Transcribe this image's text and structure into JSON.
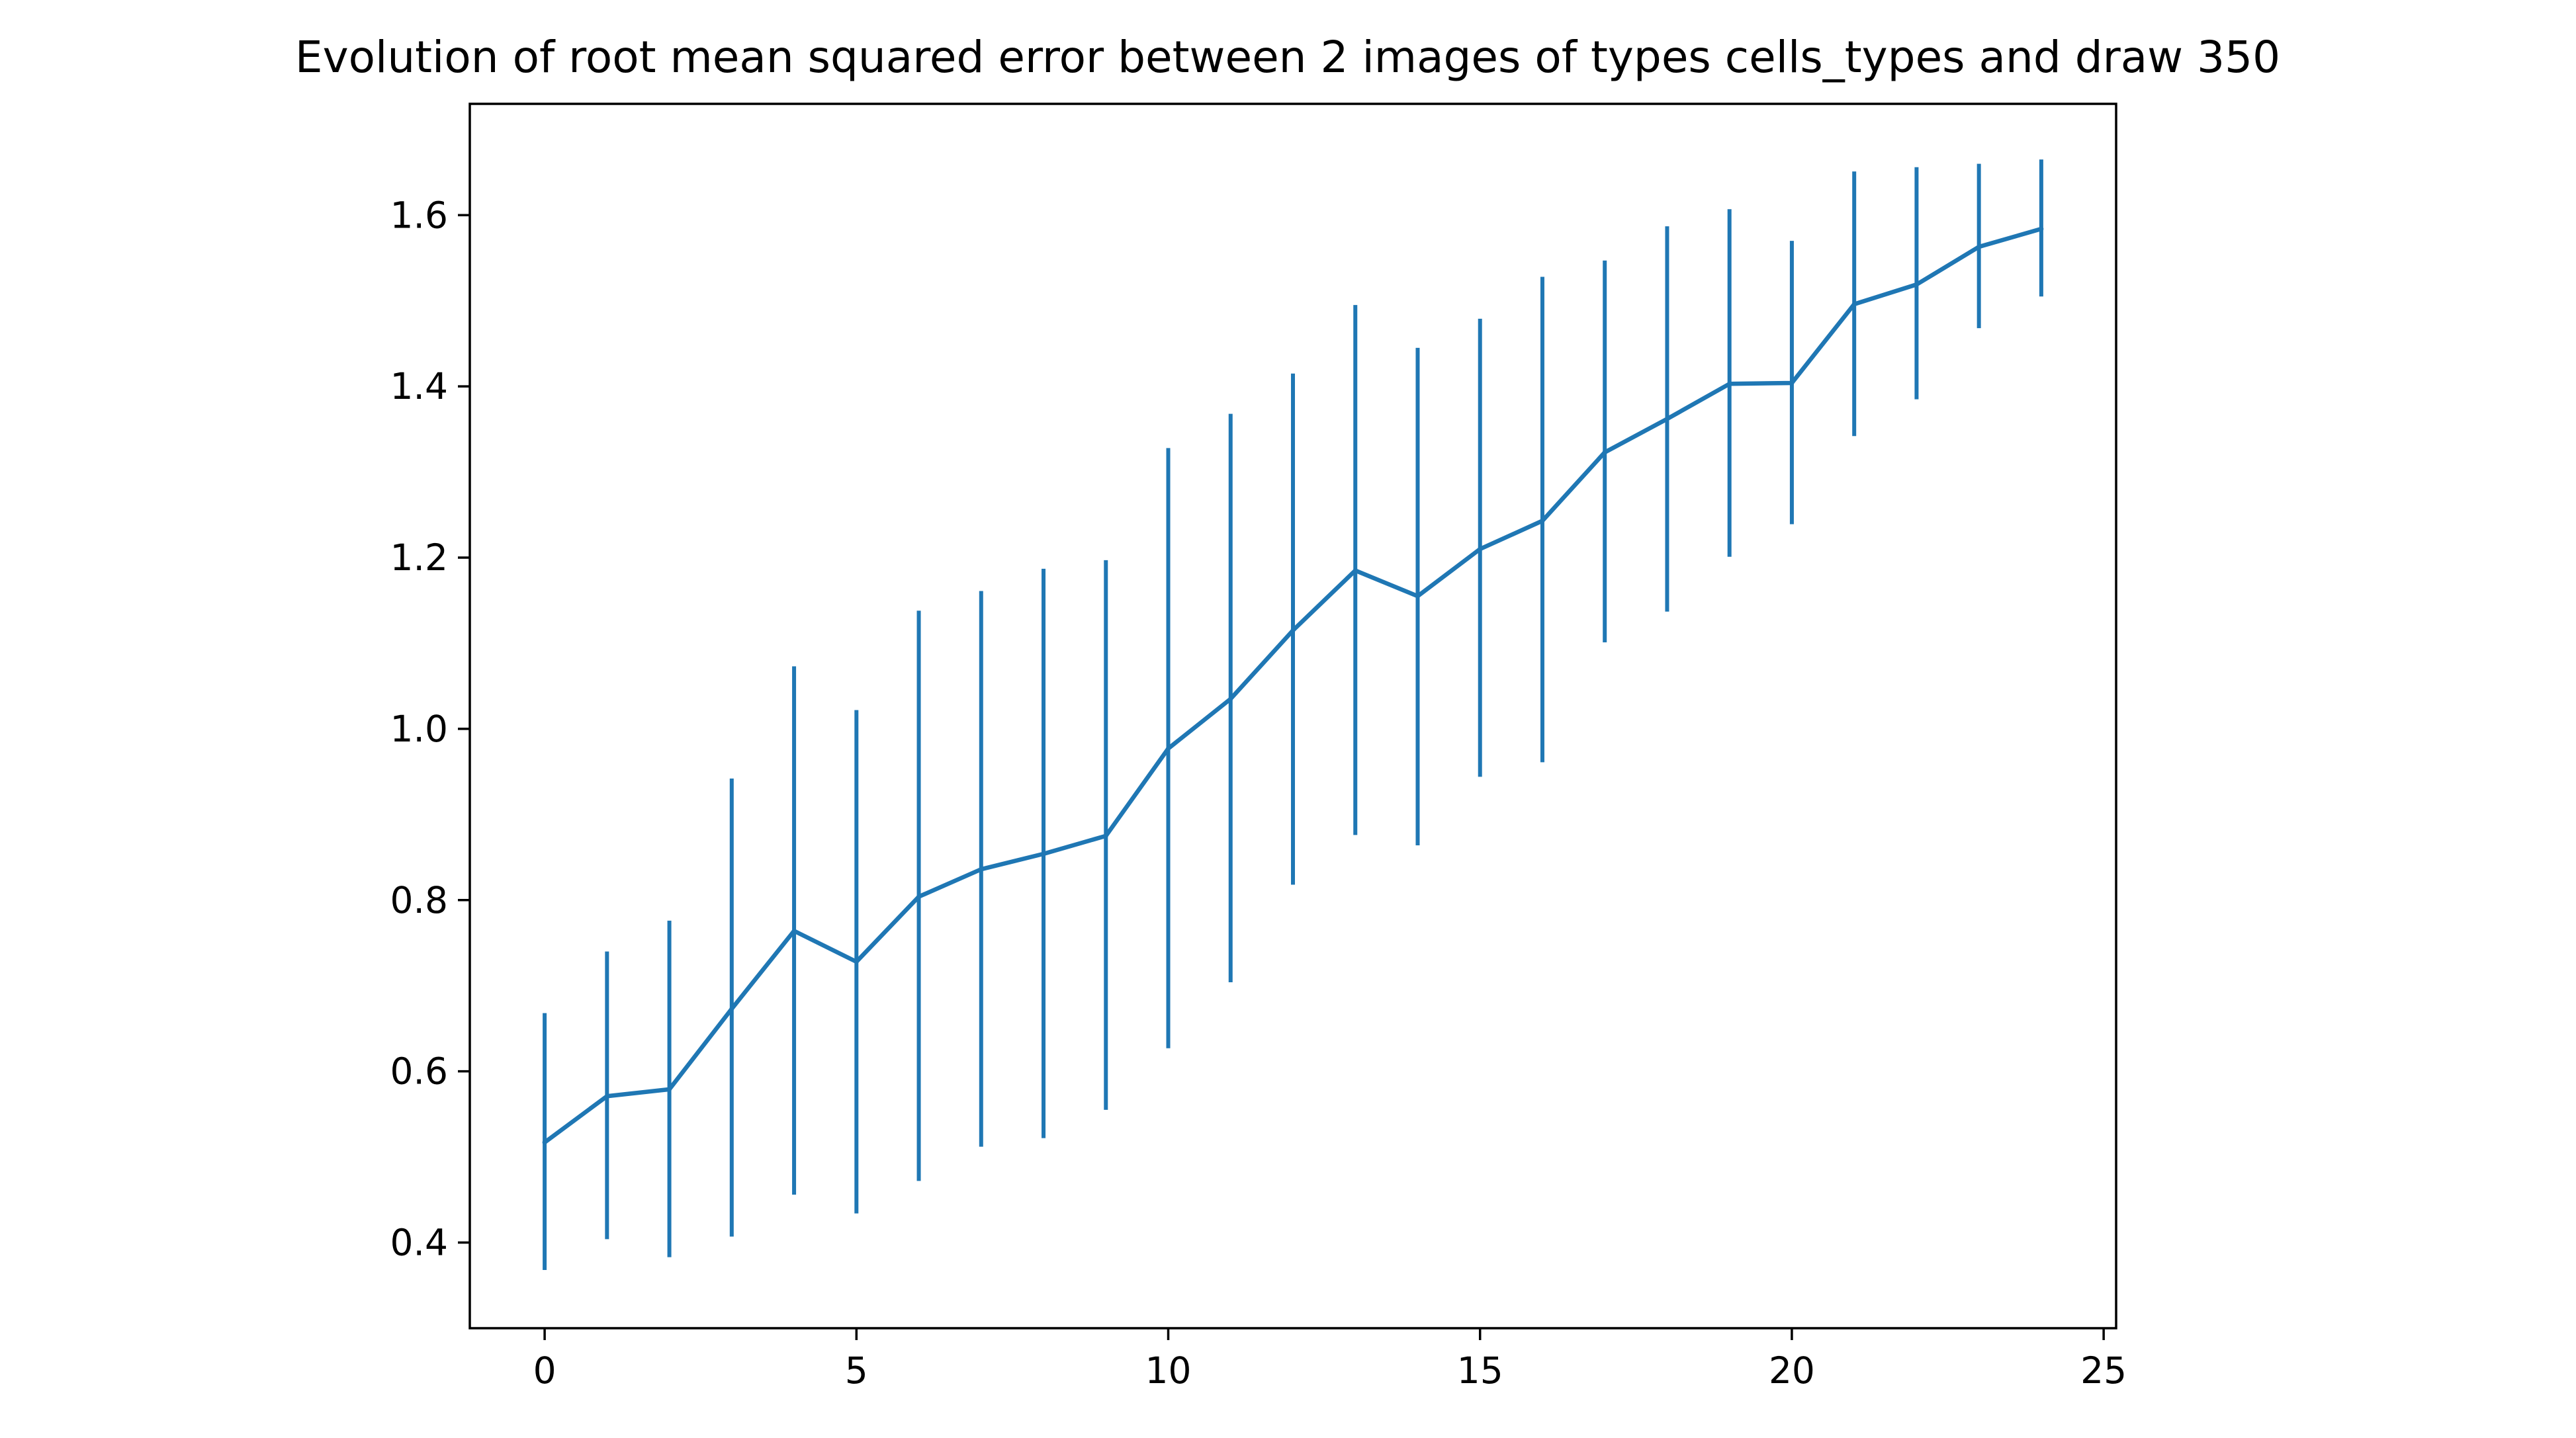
{
  "chart_data": {
    "type": "line",
    "title": "Evolution of root mean squared error between 2 images of types cells_types and draw 350",
    "xlabel": "",
    "ylabel": "",
    "xlim": [
      -1.2,
      25.2
    ],
    "ylim": [
      0.3,
      1.73
    ],
    "x_ticks": [
      0,
      5,
      10,
      15,
      20,
      25
    ],
    "y_ticks": [
      0.4,
      0.6,
      0.8,
      1.0,
      1.2,
      1.4,
      1.6
    ],
    "x_tick_labels": [
      "0",
      "5",
      "10",
      "15",
      "20",
      "25"
    ],
    "y_tick_labels": [
      "0.4",
      "0.6",
      "0.8",
      "1.0",
      "1.2",
      "1.4",
      "1.6"
    ],
    "grid": false,
    "legend": "none",
    "series": [
      {
        "color": "#1f77b4",
        "x": [
          0,
          1,
          2,
          3,
          4,
          5,
          6,
          7,
          8,
          9,
          10,
          11,
          12,
          13,
          14,
          15,
          16,
          17,
          18,
          19,
          20,
          21,
          22,
          23,
          24
        ],
        "y": [
          0.517,
          0.571,
          0.579,
          0.673,
          0.764,
          0.728,
          0.804,
          0.836,
          0.854,
          0.875,
          0.977,
          1.035,
          1.115,
          1.185,
          1.155,
          1.21,
          1.243,
          1.323,
          1.362,
          1.403,
          1.404,
          1.496,
          1.519,
          1.563,
          1.584
        ],
        "error_low": [
          0.368,
          0.404,
          0.383,
          0.407,
          0.456,
          0.434,
          0.472,
          0.512,
          0.522,
          0.555,
          0.627,
          0.704,
          0.818,
          0.876,
          0.864,
          0.944,
          0.961,
          1.101,
          1.137,
          1.201,
          1.239,
          1.342,
          1.385,
          1.468,
          1.505
        ],
        "error_high": [
          0.668,
          0.74,
          0.776,
          0.942,
          1.073,
          1.022,
          1.138,
          1.161,
          1.187,
          1.197,
          1.328,
          1.368,
          1.415,
          1.495,
          1.445,
          1.479,
          1.528,
          1.547,
          1.587,
          1.607,
          1.57,
          1.651,
          1.656,
          1.66,
          1.665
        ]
      }
    ]
  },
  "colors": {
    "series": "#1f77b4",
    "axes": "#000000",
    "background": "#ffffff"
  }
}
